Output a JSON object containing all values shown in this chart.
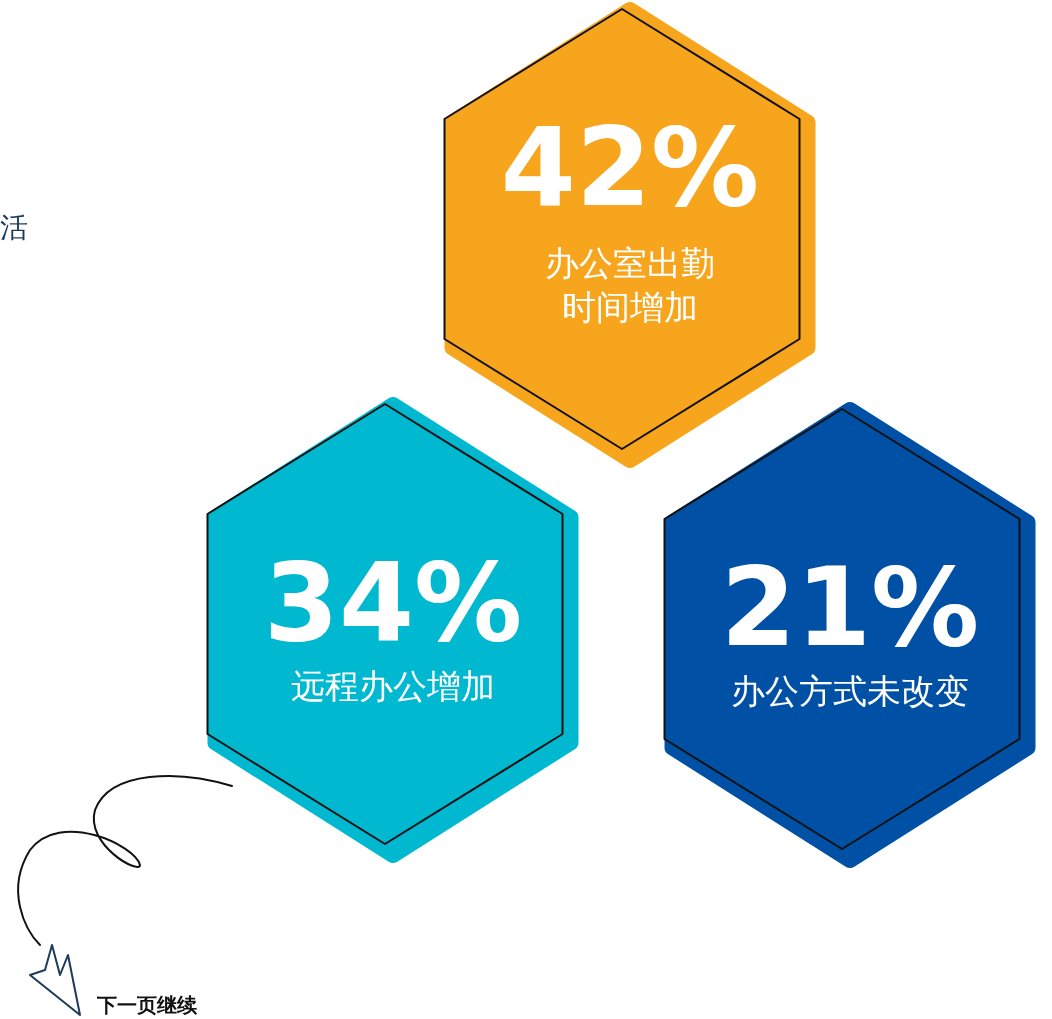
{
  "chart_data": {
    "type": "other",
    "categories": [
      "办公室出勤时间增加",
      "远程办公增加",
      "办公方式未改变"
    ],
    "values": [
      42,
      34,
      21
    ],
    "value_labels": [
      "42%",
      "34%",
      "21%"
    ],
    "colors": [
      "#f7a51d",
      "#00b9d1",
      "#0050a5"
    ],
    "annotations": [
      "活",
      "下一页继续"
    ]
  }
}
